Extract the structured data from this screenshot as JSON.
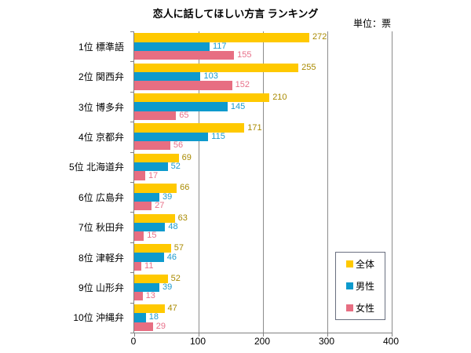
{
  "title": "恋人に話してほしい方言 ランキング",
  "unit_label": "単位：票",
  "chart_data": {
    "type": "bar",
    "orientation": "horizontal",
    "title": "恋人に話してほしい方言 ランキング",
    "unit": "単位：票",
    "categories": [
      "1位 標準語",
      "2位 関西弁",
      "3位 博多弁",
      "4位 京都弁",
      "5位 北海道弁",
      "6位 広島弁",
      "7位 秋田弁",
      "8位 津軽弁",
      "9位 山形弁",
      "10位 沖縄弁"
    ],
    "series": [
      {
        "name": "全体",
        "color": "#FFC900",
        "label_color": "#A98A00",
        "values": [
          272,
          255,
          210,
          171,
          69,
          66,
          63,
          57,
          52,
          47
        ]
      },
      {
        "name": "男性",
        "color": "#0D9ACD",
        "label_color": "#1D9BCE",
        "values": [
          117,
          103,
          145,
          115,
          52,
          39,
          48,
          46,
          39,
          18
        ]
      },
      {
        "name": "女性",
        "color": "#E76E82",
        "label_color": "#E87089",
        "values": [
          155,
          152,
          65,
          56,
          17,
          27,
          15,
          11,
          13,
          29
        ]
      }
    ],
    "x_ticks": [
      0,
      100,
      200,
      300,
      400
    ],
    "xlim": [
      0,
      400
    ],
    "grid": true,
    "legend_position": "right-inside",
    "axis_color": "#808080",
    "gridline_color": "#8C8C8C"
  }
}
